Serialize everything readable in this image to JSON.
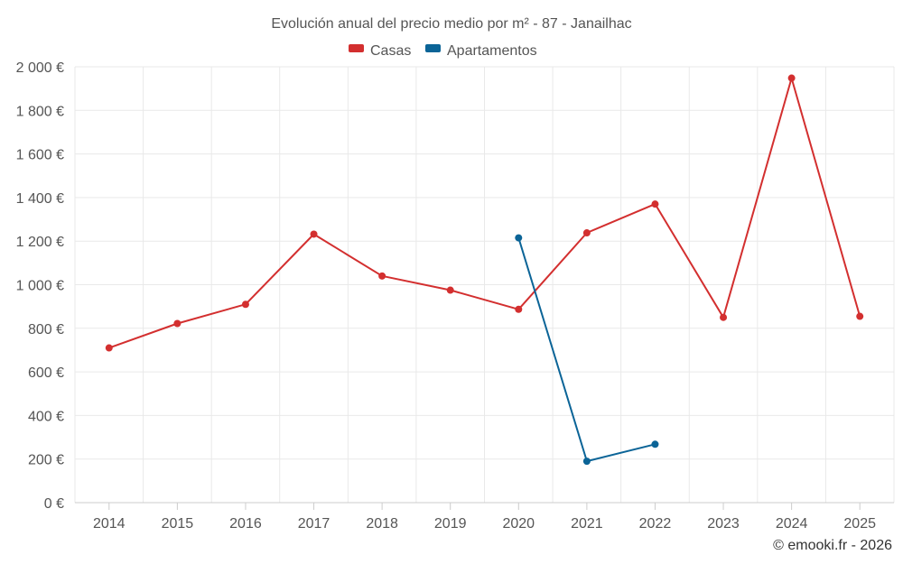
{
  "chart_data": {
    "type": "line",
    "title": "Evolución anual del precio medio por m² - 87 - Janailhac",
    "xlabel": "",
    "ylabel": "",
    "categories": [
      "2014",
      "2015",
      "2016",
      "2017",
      "2018",
      "2019",
      "2020",
      "2021",
      "2022",
      "2023",
      "2024",
      "2025"
    ],
    "ylim": [
      0,
      2000
    ],
    "yticks": [
      0,
      200,
      400,
      600,
      800,
      1000,
      1200,
      1400,
      1600,
      1800,
      2000
    ],
    "ytick_labels": [
      "0 €",
      "200 €",
      "400 €",
      "600 €",
      "800 €",
      "1 000 €",
      "1 200 €",
      "1 400 €",
      "1 600 €",
      "1 800 €",
      "2 000 €"
    ],
    "grid": true,
    "legend_position": "top-center",
    "series": [
      {
        "name": "Casas",
        "color": "#d32f2f",
        "values": [
          710,
          822,
          910,
          1232,
          1040,
          975,
          887,
          1238,
          1370,
          850,
          1948,
          855
        ]
      },
      {
        "name": "Apartamentos",
        "color": "#0b6497",
        "values": [
          null,
          null,
          null,
          null,
          null,
          null,
          1215,
          190,
          268,
          null,
          null,
          null
        ]
      }
    ]
  },
  "credit": "© emooki.fr - 2026"
}
